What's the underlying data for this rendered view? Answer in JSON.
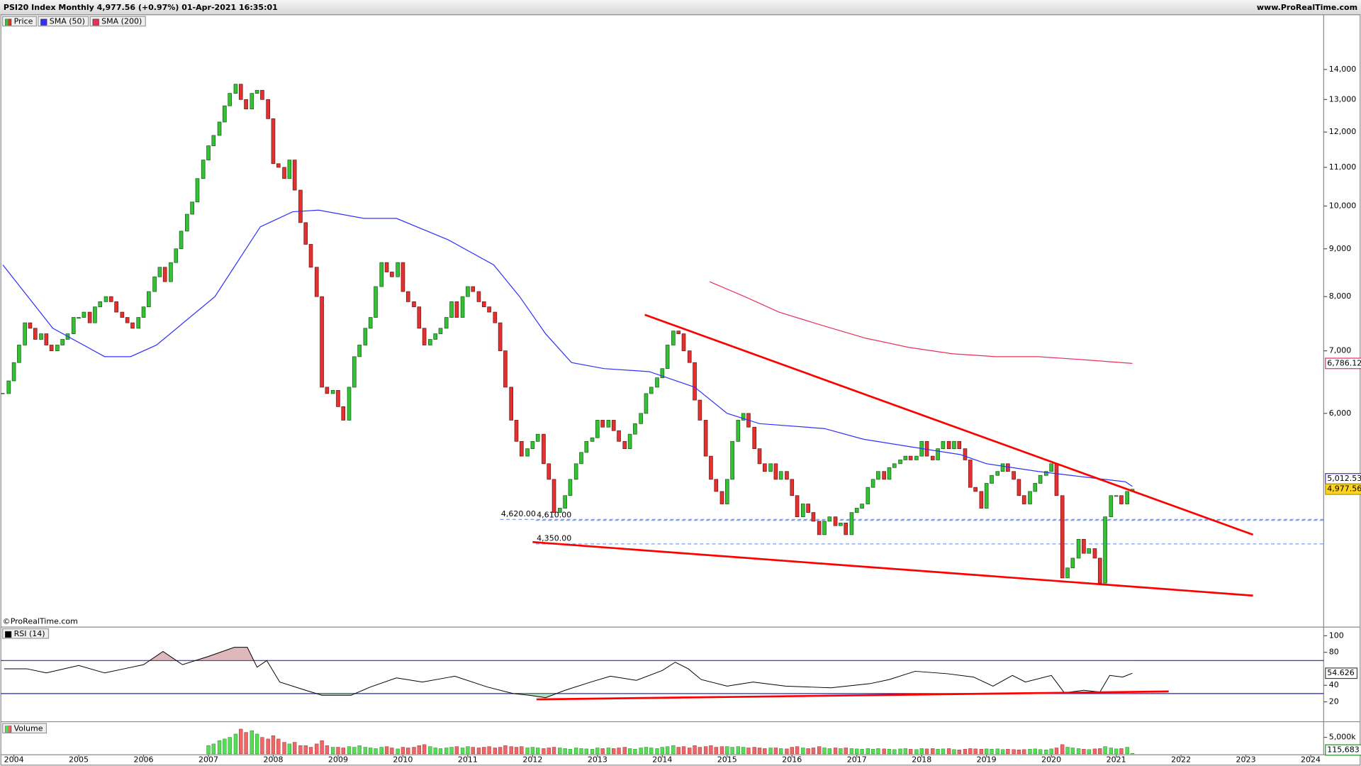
{
  "chart_data": [
    {
      "type": "candlestick",
      "title": "PSI20 Index Monthly 4,977.56 (+0.97%) 01-Apr-2021 16:35:01",
      "source": "www.ProRealTime.com",
      "copyright": "©ProRealTime.com",
      "log_scale": true,
      "xlim": [
        2003.826,
        2024.2
      ],
      "xticks": [
        2004,
        2005,
        2006,
        2007,
        2008,
        2009,
        2010,
        2011,
        2012,
        2013,
        2014,
        2015,
        2016,
        2017,
        2018,
        2019,
        2020,
        2021,
        2022,
        2023,
        2024
      ],
      "ylim": [
        3552,
        15985
      ],
      "yticks": [
        {
          "value": 6000,
          "label": "6,000"
        },
        {
          "value": 7000,
          "label": "7,000"
        },
        {
          "value": 8000,
          "label": "8,000"
        },
        {
          "value": 9000,
          "label": "9,000"
        },
        {
          "value": 10000,
          "label": "10,000"
        },
        {
          "value": 11000,
          "label": "11,000"
        },
        {
          "value": 12000,
          "label": "12,000"
        },
        {
          "value": 13000,
          "label": "13,000"
        },
        {
          "value": 14000,
          "label": "14,000"
        }
      ],
      "series": [
        {
          "name": "Price",
          "color_up": "#33c233",
          "color_down": "#e53030",
          "last_label": "4,977.56",
          "x": [
            2003.83,
            2003.92,
            2004.0,
            2004.08,
            2004.17,
            2004.25,
            2004.33,
            2004.42,
            2004.5,
            2004.58,
            2004.67,
            2004.75,
            2004.83,
            2004.92,
            2005.0,
            2005.08,
            2005.17,
            2005.25,
            2005.33,
            2005.42,
            2005.5,
            2005.58,
            2005.67,
            2005.75,
            2005.83,
            2005.92,
            2006.0,
            2006.08,
            2006.17,
            2006.25,
            2006.33,
            2006.42,
            2006.5,
            2006.58,
            2006.67,
            2006.75,
            2006.83,
            2006.92,
            2007.0,
            2007.08,
            2007.17,
            2007.25,
            2007.33,
            2007.42,
            2007.5,
            2007.58,
            2007.67,
            2007.75,
            2007.83,
            2007.92,
            2008.0,
            2008.08,
            2008.17,
            2008.25,
            2008.33,
            2008.42,
            2008.5,
            2008.58,
            2008.67,
            2008.75,
            2008.83,
            2008.92,
            2009.0,
            2009.08,
            2009.17,
            2009.25,
            2009.33,
            2009.42,
            2009.5,
            2009.58,
            2009.67,
            2009.75,
            2009.83,
            2009.92,
            2010.0,
            2010.08,
            2010.17,
            2010.25,
            2010.33,
            2010.42,
            2010.5,
            2010.58,
            2010.67,
            2010.75,
            2010.83,
            2010.92,
            2011.0,
            2011.08,
            2011.17,
            2011.25,
            2011.33,
            2011.42,
            2011.5,
            2011.58,
            2011.67,
            2011.75,
            2011.83,
            2011.92,
            2012.0,
            2012.08,
            2012.17,
            2012.25,
            2012.33,
            2012.42,
            2012.5,
            2012.58,
            2012.67,
            2012.75,
            2012.83,
            2012.92,
            2013.0,
            2013.08,
            2013.17,
            2013.25,
            2013.33,
            2013.42,
            2013.5,
            2013.58,
            2013.67,
            2013.75,
            2013.83,
            2013.92,
            2014.0,
            2014.08,
            2014.17,
            2014.25,
            2014.33,
            2014.42,
            2014.5,
            2014.58,
            2014.67,
            2014.75,
            2014.83,
            2014.92,
            2015.0,
            2015.08,
            2015.17,
            2015.25,
            2015.33,
            2015.42,
            2015.5,
            2015.58,
            2015.67,
            2015.75,
            2015.83,
            2015.92,
            2016.0,
            2016.08,
            2016.17,
            2016.25,
            2016.33,
            2016.42,
            2016.5,
            2016.58,
            2016.67,
            2016.75,
            2016.83,
            2016.92,
            2017.0,
            2017.08,
            2017.17,
            2017.25,
            2017.33,
            2017.42,
            2017.5,
            2017.58,
            2017.67,
            2017.75,
            2017.83,
            2017.92,
            2018.0,
            2018.08,
            2018.17,
            2018.25,
            2018.33,
            2018.42,
            2018.5,
            2018.58,
            2018.67,
            2018.75,
            2018.83,
            2018.92,
            2019.0,
            2019.08,
            2019.17,
            2019.25,
            2019.33,
            2019.42,
            2019.5,
            2019.58,
            2019.67,
            2019.75,
            2019.83,
            2019.92,
            2020.0,
            2020.08,
            2020.17,
            2020.25,
            2020.33,
            2020.42,
            2020.5,
            2020.58,
            2020.67,
            2020.75,
            2020.83,
            2020.92,
            2021.0,
            2021.08,
            2021.17,
            2021.25
          ],
          "close": [
            6300,
            6500,
            6800,
            7100,
            7500,
            7400,
            7200,
            7300,
            7100,
            7000,
            7100,
            7200,
            7300,
            7600,
            7600,
            7700,
            7500,
            7800,
            7900,
            8000,
            7900,
            7700,
            7600,
            7500,
            7400,
            7600,
            7800,
            8100,
            8400,
            8600,
            8300,
            8700,
            9000,
            9400,
            9800,
            10100,
            10700,
            11200,
            11600,
            11900,
            12300,
            12800,
            13200,
            13500,
            13000,
            12700,
            13200,
            13300,
            13000,
            12400,
            11100,
            11000,
            10700,
            11200,
            10400,
            9600,
            9100,
            8600,
            8000,
            6400,
            6300,
            6350,
            6100,
            5900,
            6400,
            6900,
            7100,
            7400,
            7600,
            8200,
            8700,
            8500,
            8400,
            8700,
            8100,
            7900,
            7800,
            7400,
            7100,
            7200,
            7300,
            7400,
            7600,
            7900,
            7600,
            8000,
            8200,
            8100,
            7900,
            7800,
            7700,
            7500,
            7000,
            6400,
            5900,
            5600,
            5400,
            5500,
            5600,
            5700,
            5300,
            5100,
            4700,
            4750,
            4900,
            5100,
            5300,
            5450,
            5600,
            5650,
            5900,
            5800,
            5900,
            5750,
            5600,
            5500,
            5700,
            5850,
            6000,
            6300,
            6400,
            6550,
            6700,
            7100,
            7350,
            7300,
            7000,
            6800,
            6200,
            5900,
            5400,
            5100,
            4950,
            4800,
            5100,
            5600,
            5900,
            6000,
            5800,
            5500,
            5300,
            5200,
            5300,
            5100,
            5200,
            5100,
            4900,
            4650,
            4800,
            4700,
            4600,
            4450,
            4600,
            4650,
            4550,
            4580,
            4450,
            4700,
            4750,
            4800,
            5000,
            5100,
            5200,
            5100,
            5250,
            5300,
            5350,
            5400,
            5350,
            5400,
            5600,
            5400,
            5350,
            5500,
            5600,
            5500,
            5600,
            5500,
            5350,
            5000,
            4950,
            4750,
            5050,
            5150,
            5200,
            5300,
            5200,
            5100,
            4900,
            4800,
            4950,
            5050,
            5150,
            5200,
            5300,
            4900,
            4000,
            4100,
            4200,
            4400,
            4250,
            4300,
            4200,
            3950,
            4650,
            4900,
            4900,
            4800,
            4950,
            4977.56
          ]
        },
        {
          "name": "SMA (50)",
          "type": "line",
          "color": "#3030ff",
          "last_label": "5,012.53",
          "x": [
            2003.83,
            2004.6,
            2005.4,
            2005.8,
            2006.2,
            2007.1,
            2007.8,
            2008.3,
            2008.7,
            2009.4,
            2009.9,
            2010.7,
            2011.4,
            2011.8,
            2012.2,
            2012.6,
            2013.1,
            2013.8,
            2014.5,
            2015.0,
            2015.5,
            2016.5,
            2017.1,
            2017.8,
            2018.6,
            2019.0,
            2019.8,
            2020.3,
            2021.14,
            2021.25
          ],
          "values": [
            8650,
            7400,
            6900,
            6900,
            7100,
            8000,
            9500,
            9860,
            9900,
            9700,
            9700,
            9200,
            8650,
            8000,
            7300,
            6800,
            6700,
            6650,
            6400,
            6000,
            5850,
            5780,
            5630,
            5530,
            5420,
            5300,
            5200,
            5150,
            5070,
            5012.53
          ]
        },
        {
          "name": "SMA (200)",
          "type": "line",
          "color": "#e8305a",
          "last_label": "6,786.12",
          "x": [
            2014.73,
            2015.27,
            2015.8,
            2016.47,
            2017.14,
            2017.8,
            2018.47,
            2019.14,
            2019.8,
            2020.47,
            2021.25
          ],
          "values": [
            8300,
            8000,
            7700,
            7450,
            7220,
            7060,
            6950,
            6900,
            6900,
            6850,
            6786.12
          ]
        }
      ],
      "trendlines": [
        {
          "color": "#ff0000",
          "x": [
            2013.73,
            2023.11
          ],
          "values": [
            7650,
            4450
          ]
        },
        {
          "color": "#ff0000",
          "x": [
            2012.0,
            2023.11
          ],
          "values": [
            4370,
            3830
          ]
        }
      ],
      "levels": [
        {
          "value": 4620,
          "label": "4,620.00",
          "x": 2011.5,
          "color": "#7d9cf0"
        },
        {
          "value": 4610,
          "label": "4,610.00",
          "x": 2012.05,
          "color": "#7d9cf0"
        },
        {
          "value": 4350,
          "label": "4,350.00",
          "x": 2012.05,
          "color": "#7d9cf0"
        }
      ]
    },
    {
      "type": "line",
      "ylim": [
        -3,
        109.5
      ],
      "yticks": [
        20,
        40,
        80,
        100
      ],
      "level_lines": [
        30,
        70
      ],
      "level_color": "#2020c0",
      "series": [
        {
          "name": "RSI (14)",
          "color": "#000000",
          "last_label": "54.626",
          "x": [
            2003.85,
            2004.2,
            2004.5,
            2005.0,
            2005.4,
            2005.7,
            2006.0,
            2006.3,
            2006.6,
            2007.0,
            2007.4,
            2007.6,
            2007.75,
            2007.9,
            2008.1,
            2008.5,
            2008.75,
            2009.2,
            2009.5,
            2009.9,
            2010.3,
            2010.8,
            2011.3,
            2011.7,
            2011.95,
            2012.2,
            2012.5,
            2012.9,
            2013.2,
            2013.6,
            2014.0,
            2014.2,
            2014.4,
            2014.6,
            2015.0,
            2015.4,
            2015.9,
            2016.6,
            2017.2,
            2017.5,
            2017.9,
            2018.4,
            2018.8,
            2019.1,
            2019.4,
            2019.6,
            2020.0,
            2020.2,
            2020.5,
            2020.75,
            2020.9,
            2021.1,
            2021.25
          ],
          "values": [
            60,
            60,
            55,
            64,
            55,
            60,
            65,
            81,
            65,
            75,
            86,
            86,
            62,
            70,
            44,
            34,
            28,
            28,
            38,
            49,
            44,
            51,
            38,
            30,
            28,
            25,
            34,
            44,
            51,
            46,
            58,
            68,
            60,
            47,
            39,
            44,
            39,
            37,
            42,
            47,
            57,
            54,
            50,
            39,
            52,
            44,
            52,
            31,
            34,
            32,
            52,
            50,
            54.626
          ]
        }
      ],
      "trendlines": [
        {
          "color": "#ff0000",
          "x": [
            2012.06,
            2021.81
          ],
          "values": [
            23,
            32.6
          ]
        }
      ]
    },
    {
      "type": "bar",
      "ylim": [
        0,
        9470000
      ],
      "yticks": [
        {
          "value": 5000000,
          "label": "5,000k"
        }
      ],
      "series": [
        {
          "name": "Volume",
          "color_up": "#55dd55",
          "color_down": "#ee6666",
          "last_label": "115,683",
          "values": [
            null,
            null,
            null,
            null,
            null,
            null,
            null,
            null,
            null,
            null,
            null,
            null,
            null,
            null,
            null,
            null,
            null,
            null,
            null,
            null,
            null,
            null,
            null,
            null,
            null,
            null,
            null,
            null,
            null,
            null,
            null,
            null,
            null,
            null,
            null,
            null,
            null,
            null,
            2500000,
            3000000,
            4000000,
            4500000,
            5000000,
            6000000,
            7500000,
            6500000,
            7000000,
            6000000,
            5000000,
            4500000,
            5500000,
            4500000,
            3500000,
            3000000,
            3500000,
            2500000,
            2500000,
            2000000,
            3000000,
            4000000,
            2500000,
            2000000,
            2000000,
            1800000,
            2200000,
            2000000,
            2500000,
            2000000,
            1800000,
            1600000,
            2000000,
            2200000,
            1800000,
            1500000,
            2000000,
            1800000,
            2000000,
            2500000,
            2800000,
            2200000,
            1800000,
            1600000,
            1800000,
            2000000,
            2200000,
            1800000,
            2200000,
            2000000,
            1800000,
            2000000,
            2200000,
            1800000,
            2000000,
            2500000,
            2200000,
            2000000,
            2200000,
            1800000,
            2000000,
            1800000,
            1600000,
            1800000,
            2000000,
            1800000,
            1600000,
            1400000,
            1800000,
            1600000,
            1500000,
            1400000,
            1800000,
            1600000,
            1800000,
            1600000,
            1800000,
            2000000,
            1600000,
            1400000,
            1800000,
            2000000,
            1800000,
            1600000,
            2000000,
            2200000,
            2500000,
            2000000,
            2200000,
            1800000,
            2500000,
            2000000,
            2200000,
            2500000,
            2000000,
            2200000,
            2200000,
            2000000,
            2200000,
            2000000,
            1800000,
            2000000,
            1800000,
            1600000,
            1800000,
            1800000,
            1600000,
            1500000,
            2000000,
            2200000,
            1800000,
            1600000,
            1800000,
            2200000,
            1800000,
            1600000,
            1800000,
            1600000,
            1800000,
            1600000,
            1500000,
            1400000,
            1600000,
            1400000,
            1600000,
            1500000,
            1400000,
            1300000,
            1500000,
            1600000,
            1400000,
            1300000,
            1600000,
            1500000,
            1600000,
            1400000,
            1500000,
            1600000,
            1300000,
            1200000,
            1400000,
            1600000,
            1500000,
            1400000,
            1500000,
            1400000,
            1500000,
            1300000,
            1400000,
            1300000,
            1200000,
            1300000,
            1400000,
            1500000,
            1300000,
            1200000,
            1500000,
            1800000,
            2800000,
            2000000,
            1800000,
            1600000,
            1400000,
            1300000,
            1500000,
            1600000,
            2200000,
            1800000,
            1500000,
            1600000,
            2000000,
            115683
          ]
        }
      ]
    }
  ]
}
